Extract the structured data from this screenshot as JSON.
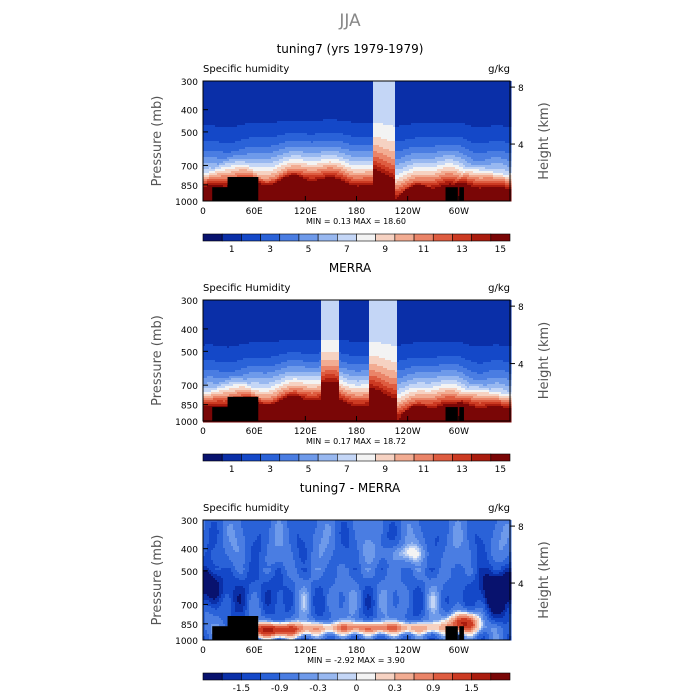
{
  "figure_title": "JJA",
  "chart_data": [
    {
      "type": "heatmap",
      "title": "tuning7 (yrs 1979-1979)",
      "variable_label": "Specific humidity",
      "units": "g/kg",
      "ylabel": "Pressure (mb)",
      "ylabel_right": "Height (km)",
      "pressure_ticks": [
        "300",
        "400",
        "500",
        "700",
        "850",
        "1000"
      ],
      "pressure_values": [
        300,
        400,
        500,
        700,
        850,
        1000
      ],
      "height_ticks": [
        "8",
        "4"
      ],
      "height_values": [
        8,
        4
      ],
      "x_ticks": [
        "0",
        "60E",
        "120E",
        "180",
        "120W",
        "60W"
      ],
      "x_values": [
        0,
        60,
        120,
        180,
        240,
        300
      ],
      "xlim": [
        0,
        360
      ],
      "ylim": [
        1000,
        300
      ],
      "stats_text": "MIN =    0.13   MAX =   18.60",
      "min": 0.13,
      "max": 18.6,
      "colorbar_labels": [
        "1",
        "3",
        "5",
        "7",
        "9",
        "11",
        "13",
        "15"
      ],
      "levels": [
        0,
        1,
        2,
        3,
        4,
        5,
        6,
        7,
        8,
        9,
        10,
        11,
        12,
        13,
        14,
        15,
        16
      ]
    },
    {
      "type": "heatmap",
      "title": "MERRA",
      "variable_label": "Specific Humidity",
      "units": "g/kg",
      "ylabel": "Pressure (mb)",
      "ylabel_right": "Height (km)",
      "pressure_ticks": [
        "300",
        "400",
        "500",
        "700",
        "850",
        "1000"
      ],
      "pressure_values": [
        300,
        400,
        500,
        700,
        850,
        1000
      ],
      "height_ticks": [
        "8",
        "4"
      ],
      "height_values": [
        8,
        4
      ],
      "x_ticks": [
        "0",
        "60E",
        "120E",
        "180",
        "120W",
        "60W"
      ],
      "x_values": [
        0,
        60,
        120,
        180,
        240,
        300
      ],
      "xlim": [
        0,
        360
      ],
      "ylim": [
        1000,
        300
      ],
      "stats_text": "MIN =    0.17   MAX =   18.72",
      "min": 0.17,
      "max": 18.72,
      "colorbar_labels": [
        "1",
        "3",
        "5",
        "7",
        "9",
        "11",
        "13",
        "15"
      ],
      "levels": [
        0,
        1,
        2,
        3,
        4,
        5,
        6,
        7,
        8,
        9,
        10,
        11,
        12,
        13,
        14,
        15,
        16
      ]
    },
    {
      "type": "heatmap",
      "title": "tuning7 - MERRA",
      "variable_label": "Specific humidity",
      "units": "g/kg",
      "ylabel": "Pressure (mb)",
      "ylabel_right": "Height (km)",
      "pressure_ticks": [
        "300",
        "400",
        "500",
        "700",
        "850",
        "1000"
      ],
      "pressure_values": [
        300,
        400,
        500,
        700,
        850,
        1000
      ],
      "height_ticks": [
        "8",
        "4"
      ],
      "height_values": [
        8,
        4
      ],
      "x_ticks": [
        "0",
        "60E",
        "120E",
        "180",
        "120W",
        "60W"
      ],
      "x_values": [
        0,
        60,
        120,
        180,
        240,
        300
      ],
      "xlim": [
        0,
        360
      ],
      "ylim": [
        1000,
        300
      ],
      "stats_text": "MIN =  -2.92   MAX =    3.90",
      "min": -2.92,
      "max": 3.9,
      "colorbar_labels": [
        "-1.5",
        "-0.9",
        "-0.3",
        "0",
        "0.3",
        "0.9",
        "1.5"
      ],
      "levels": [
        -2.0,
        -1.5,
        -1.2,
        -0.9,
        -0.6,
        -0.3,
        -0.1,
        0,
        0.1,
        0.3,
        0.6,
        0.9,
        1.2,
        1.5,
        2.0,
        2.5
      ]
    }
  ],
  "colors": {
    "palette": [
      "#08126e",
      "#0a2fa8",
      "#1448c8",
      "#2a62d8",
      "#4a7de2",
      "#6e9aea",
      "#98b8f0",
      "#c4d6f6",
      "#f3f3f3",
      "#f6d2c2",
      "#f2ac92",
      "#ea8468",
      "#de5c40",
      "#cc3a22",
      "#aa1c0e",
      "#7a0606"
    ],
    "topography": "#000000",
    "frame": "#000000"
  }
}
